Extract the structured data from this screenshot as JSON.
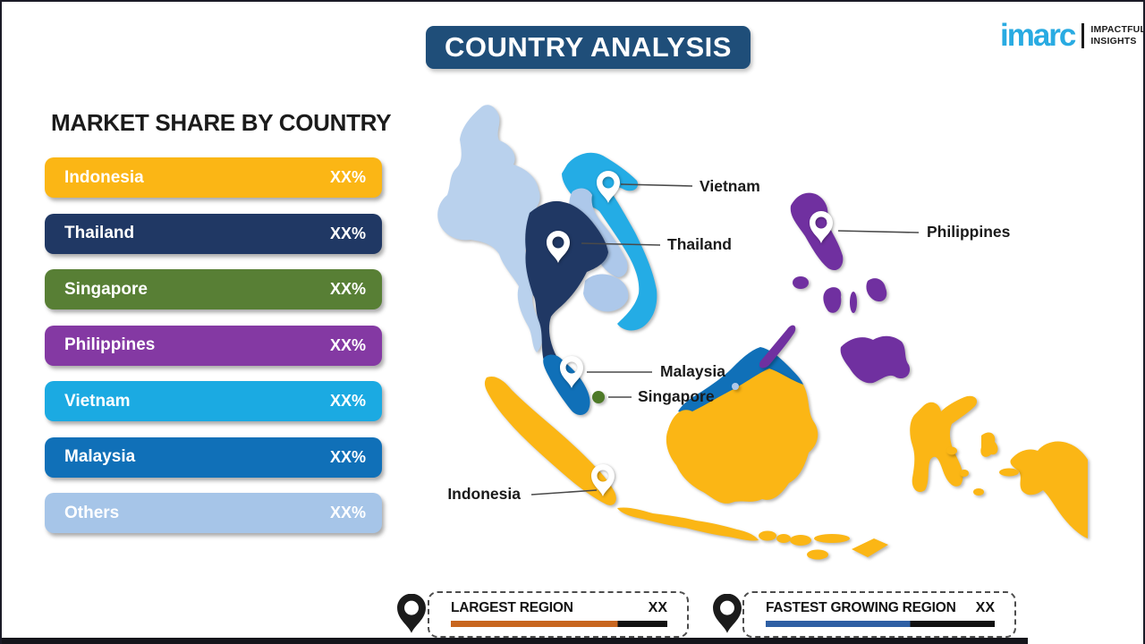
{
  "header": {
    "title": "COUNTRY ANALYSIS",
    "logo": {
      "brand": "imarc",
      "tagline_line1": "IMPACTFUL",
      "tagline_line2": "INSIGHTS",
      "brand_color": "#29ABE2"
    }
  },
  "market_share": {
    "heading": "MARKET SHARE BY COUNTRY",
    "bars": [
      {
        "label": "Indonesia",
        "value": "XX%",
        "color": "#FBB615"
      },
      {
        "label": "Thailand",
        "value": "XX%",
        "color": "#203864"
      },
      {
        "label": "Singapore",
        "value": "XX%",
        "color": "#587F35"
      },
      {
        "label": "Philippines",
        "value": "XX%",
        "color": "#8439A3"
      },
      {
        "label": "Vietnam",
        "value": "XX%",
        "color": "#1BAAE2"
      },
      {
        "label": "Malaysia",
        "value": "XX%",
        "color": "#1070B8"
      },
      {
        "label": "Others",
        "value": "XX%",
        "color": "#A6C5E8"
      }
    ]
  },
  "map": {
    "labels": {
      "vietnam": "Vietnam",
      "thailand": "Thailand",
      "philippines": "Philippines",
      "malaysia": "Malaysia",
      "singapore": "Singapore",
      "indonesia": "Indonesia"
    },
    "colors": {
      "indonesia": "#FBB615",
      "thailand": "#203864",
      "vietnam": "#24ACE5",
      "malaysia": "#1070B8",
      "philippines": "#7030A0",
      "singapore_dot": "#4E7A28",
      "myanmar": "#B9D1ED",
      "laos": "#ADC8EA",
      "cambodia": "#ADC8EA",
      "brunei": "#ADC8EA"
    }
  },
  "legend": {
    "items": [
      {
        "label": "LARGEST REGION",
        "value": "XX",
        "bar_color": "#C8661F",
        "bar_fill_pct": 77
      },
      {
        "label": "FASTEST GROWING REGION",
        "value": "XX",
        "bar_color": "#2E5FA4",
        "bar_fill_pct": 63
      }
    ]
  },
  "chart_data": {
    "type": "bar",
    "title": "MARKET SHARE BY COUNTRY",
    "categories": [
      "Indonesia",
      "Thailand",
      "Singapore",
      "Philippines",
      "Vietnam",
      "Malaysia",
      "Others"
    ],
    "values": [
      "XX%",
      "XX%",
      "XX%",
      "XX%",
      "XX%",
      "XX%",
      "XX%"
    ],
    "bar_colors": [
      "#FBB615",
      "#203864",
      "#587F35",
      "#8439A3",
      "#1BAAE2",
      "#1070B8",
      "#A6C5E8"
    ],
    "legend_position": "bottom"
  }
}
